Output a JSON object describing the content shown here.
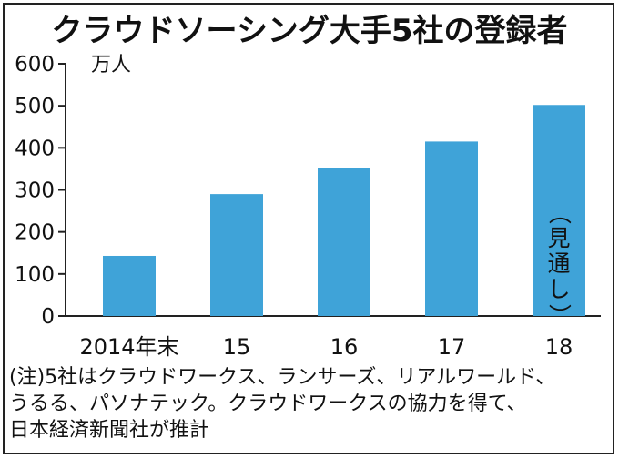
{
  "title": "クラウドソーシング大手5社の登録者",
  "chart_data": {
    "type": "bar",
    "title": "クラウドソーシング大手5社の登録者",
    "unit_label": "万人",
    "xlabel": "",
    "ylabel": "万人",
    "categories": [
      "2014年末",
      "15",
      "16",
      "17",
      "18"
    ],
    "values": [
      143,
      290,
      353,
      415,
      502
    ],
    "ylim": [
      0,
      600
    ],
    "yticks": [
      0,
      100,
      200,
      300,
      400,
      500,
      600
    ],
    "grid": false,
    "bar_color": "#3fa3d8",
    "annotation": {
      "category": "18",
      "text": "（見通し）"
    }
  },
  "note": {
    "lines": [
      "(注)5社はクラウドワークス、ランサーズ、リアルワールド、",
      "うるる、パソナテック。クラウドワークスの協力を得て、",
      "日本経済新聞社が推計"
    ]
  }
}
